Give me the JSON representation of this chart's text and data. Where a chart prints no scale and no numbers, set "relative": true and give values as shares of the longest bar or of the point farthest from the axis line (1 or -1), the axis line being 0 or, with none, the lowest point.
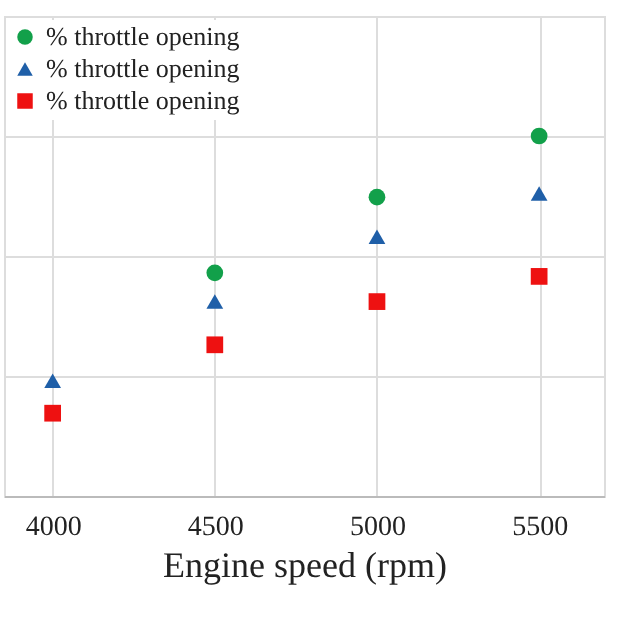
{
  "chart_data": {
    "type": "scatter",
    "xlabel": "Engine speed (rpm)",
    "relative": true,
    "xlim": [
      3850,
      5700
    ],
    "xticks": [
      4000,
      4500,
      5000,
      5500
    ],
    "grid": true,
    "legend": "top left",
    "tick_labels": "x",
    "series": [
      {
        "name": "% throttle opening",
        "color": "#12a04a",
        "marker": "circle",
        "x": [
          4500,
          5000,
          5500
        ],
        "values": [
          0.62,
          0.83,
          1
        ]
      },
      {
        "name": "% throttle opening",
        "color": "#1f5fa8",
        "marker": "triangle",
        "x": [
          4000,
          4500,
          5000,
          5500
        ],
        "values": [
          0.32,
          0.54,
          0.72,
          0.84
        ]
      },
      {
        "name": "% throttle opening",
        "color": "#ee1111",
        "marker": "square",
        "x": [
          4000,
          4500,
          5000,
          5500
        ],
        "values": [
          0.23,
          0.42,
          0.54,
          0.61
        ]
      }
    ]
  }
}
